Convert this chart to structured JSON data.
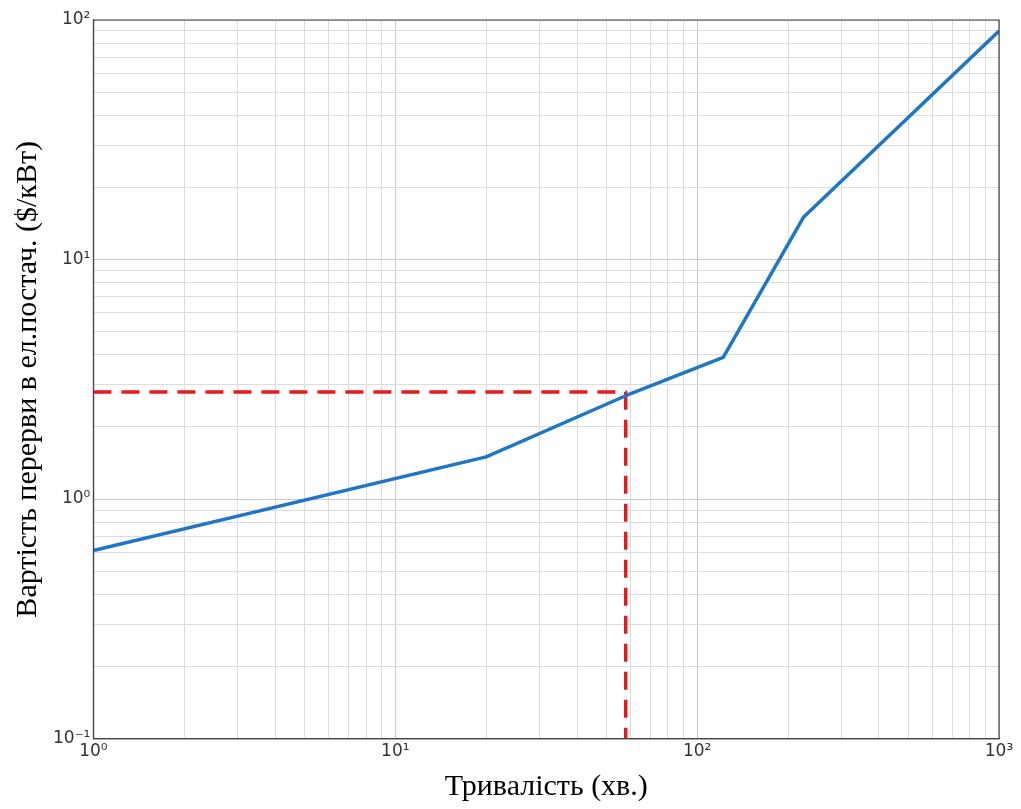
{
  "chart_data": {
    "type": "line",
    "xlabel": "Тривалість (хв.)",
    "ylabel": "Вартість перерви в ел.постач. ($/кВт)",
    "log": "xy",
    "grid": true,
    "legend": false,
    "marker": "none",
    "xlim": [
      1,
      1000
    ],
    "ylim": [
      0.1,
      100
    ],
    "xticks": [
      {
        "value": 1,
        "label": "10⁰"
      },
      {
        "value": 2,
        "label": null
      },
      {
        "value": 3,
        "label": null
      },
      {
        "value": 4,
        "label": null
      },
      {
        "value": 5,
        "label": null
      },
      {
        "value": 6,
        "label": null
      },
      {
        "value": 7,
        "label": null
      },
      {
        "value": 8,
        "label": null
      },
      {
        "value": 9,
        "label": null
      },
      {
        "value": 10,
        "label": "10¹"
      },
      {
        "value": 20,
        "label": null
      },
      {
        "value": 30,
        "label": null
      },
      {
        "value": 40,
        "label": null
      },
      {
        "value": 50,
        "label": null
      },
      {
        "value": 60,
        "label": null
      },
      {
        "value": 70,
        "label": null
      },
      {
        "value": 80,
        "label": null
      },
      {
        "value": 90,
        "label": null
      },
      {
        "value": 100,
        "label": "10²"
      },
      {
        "value": 200,
        "label": null
      },
      {
        "value": 300,
        "label": null
      },
      {
        "value": 400,
        "label": null
      },
      {
        "value": 500,
        "label": null
      },
      {
        "value": 600,
        "label": null
      },
      {
        "value": 700,
        "label": null
      },
      {
        "value": 800,
        "label": null
      },
      {
        "value": 900,
        "label": null
      },
      {
        "value": 1000,
        "label": "10³"
      }
    ],
    "yticks": [
      {
        "value": 0.1,
        "label": "10⁻¹"
      },
      {
        "value": 0.2,
        "label": null
      },
      {
        "value": 0.3,
        "label": null
      },
      {
        "value": 0.4,
        "label": null
      },
      {
        "value": 0.5,
        "label": null
      },
      {
        "value": 0.6,
        "label": null
      },
      {
        "value": 0.7,
        "label": null
      },
      {
        "value": 0.8,
        "label": null
      },
      {
        "value": 0.9,
        "label": null
      },
      {
        "value": 1,
        "label": "10⁰"
      },
      {
        "value": 2,
        "label": null
      },
      {
        "value": 3,
        "label": null
      },
      {
        "value": 4,
        "label": null
      },
      {
        "value": 5,
        "label": null
      },
      {
        "value": 6,
        "label": null
      },
      {
        "value": 7,
        "label": null
      },
      {
        "value": 8,
        "label": null
      },
      {
        "value": 9,
        "label": null
      },
      {
        "value": 10,
        "label": "10¹"
      },
      {
        "value": 20,
        "label": null
      },
      {
        "value": 30,
        "label": null
      },
      {
        "value": 40,
        "label": null
      },
      {
        "value": 50,
        "label": null
      },
      {
        "value": 60,
        "label": null
      },
      {
        "value": 70,
        "label": null
      },
      {
        "value": 80,
        "label": null
      },
      {
        "value": 90,
        "label": null
      },
      {
        "value": 100,
        "label": "10²"
      }
    ],
    "series": [
      {
        "color": "#1f77c4",
        "x": [
          1,
          20,
          58,
          122,
          225,
          1000
        ],
        "values": [
          0.61,
          1.5,
          2.7,
          3.9,
          15,
          90
        ]
      },
      {
        "type": "line",
        "color": "#e41a1c",
        "line_style": "dashed",
        "x": [
          1,
          58,
          58
        ],
        "values": [
          2.8,
          2.8,
          0.1
        ]
      }
    ]
  }
}
